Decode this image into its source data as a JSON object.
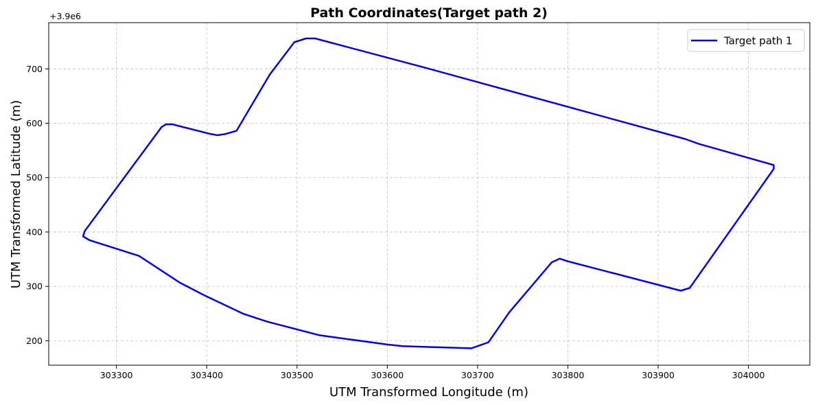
{
  "chart_data": {
    "type": "line",
    "title": "Path Coordinates(Target path 2)",
    "xlabel": "UTM Transformed Longitude (m)",
    "ylabel": "UTM Transformed Latitude (m)",
    "y_offset_label": "+3.9e6",
    "xlim": [
      303225,
      304068
    ],
    "ylim": [
      155,
      785
    ],
    "x_ticks": [
      303300,
      303400,
      303500,
      303600,
      303700,
      303800,
      303900,
      304000
    ],
    "x_tick_labels": [
      "303300",
      "303400",
      "303500",
      "303600",
      "303700",
      "303800",
      "303900",
      "304000"
    ],
    "y_ticks": [
      200,
      300,
      400,
      500,
      600,
      700
    ],
    "y_tick_labels": [
      "200",
      "300",
      "400",
      "500",
      "600",
      "700"
    ],
    "grid": true,
    "legend_position": "upper-right",
    "series": [
      {
        "name": "Target path 1",
        "color": "#0000e6",
        "x": [
          303265,
          303350,
          303355,
          303362,
          303405,
          303412,
          303420,
          303433,
          303470,
          303497,
          303510,
          303520,
          303640,
          303930,
          303945,
          304020,
          304028,
          304028,
          303935,
          303925,
          303800,
          303791,
          303782,
          303735,
          303712,
          303693,
          303617,
          303600,
          303525,
          303467,
          303440,
          303398,
          303370,
          303325,
          303270,
          303263,
          303265
        ],
        "y": [
          402,
          593,
          598,
          598,
          580,
          578,
          580,
          586,
          690,
          749,
          756,
          756,
          703,
          571,
          562,
          527,
          523,
          516,
          297,
          292,
          346,
          351,
          344,
          252,
          197,
          186,
          190,
          193,
          210,
          235,
          250,
          283,
          307,
          356,
          385,
          392,
          402
        ]
      }
    ]
  }
}
